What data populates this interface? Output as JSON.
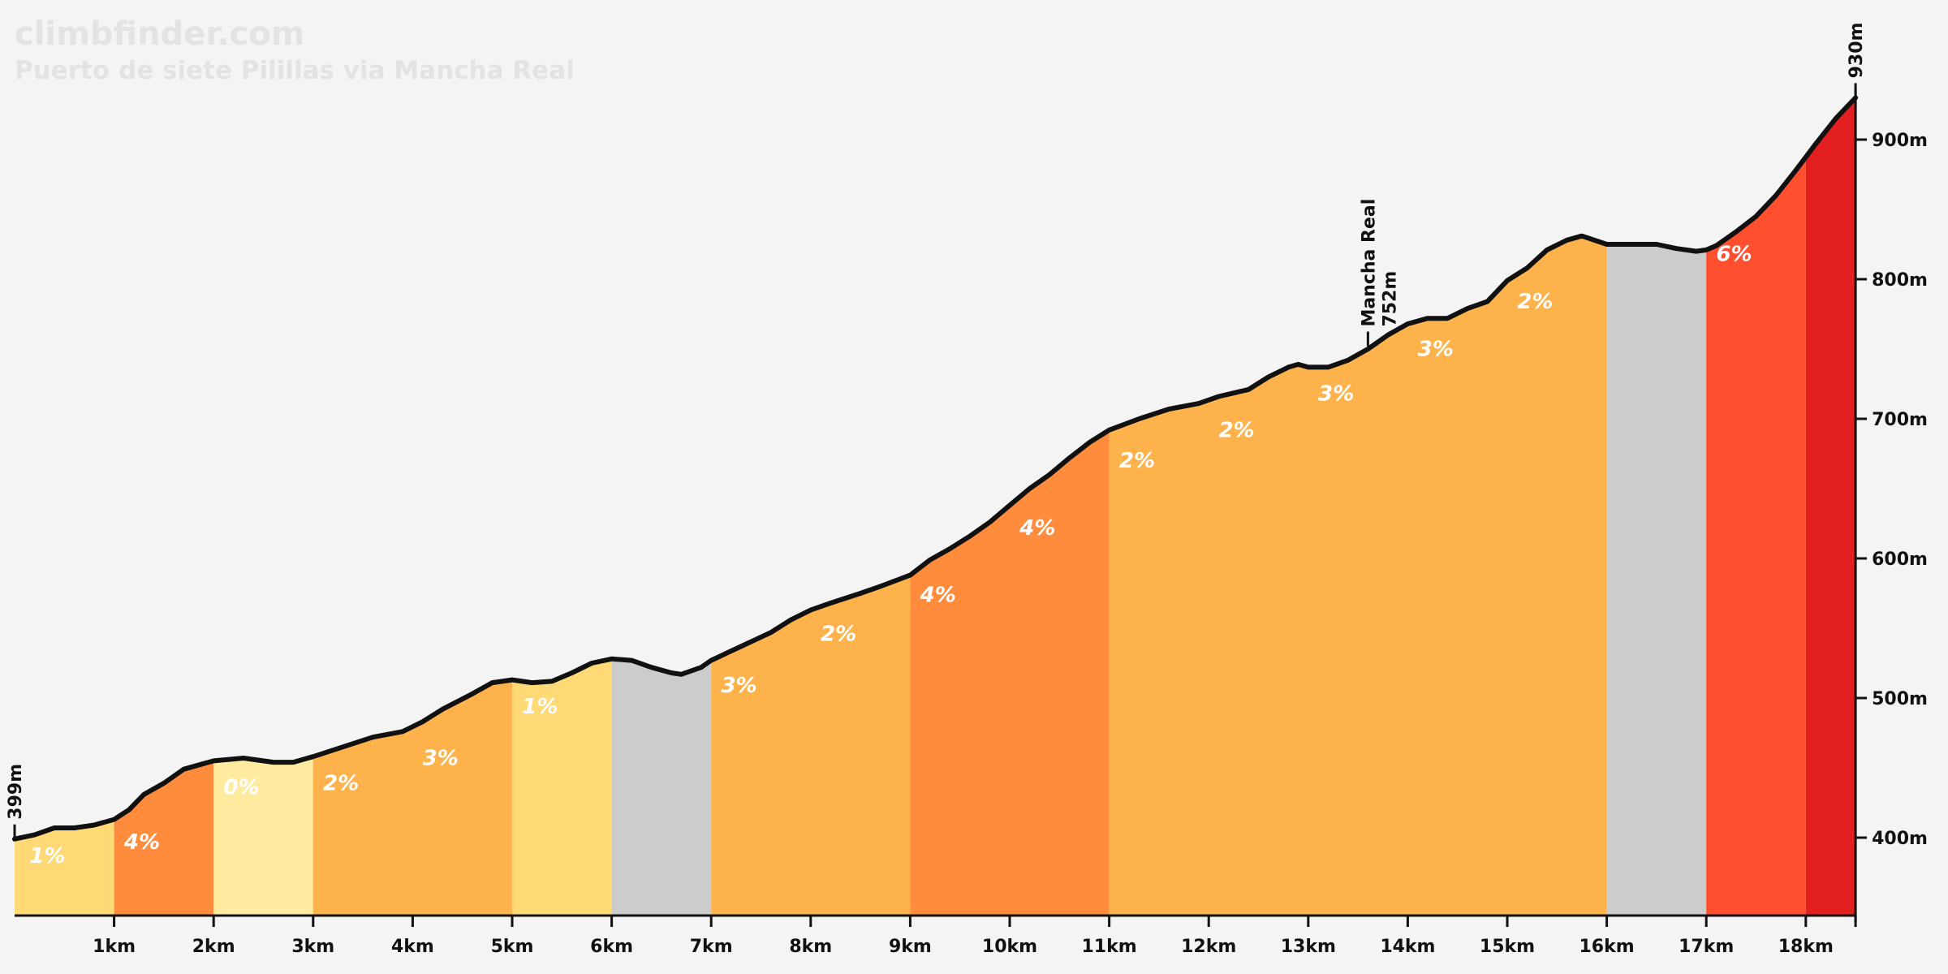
{
  "site": "climbfinder.com",
  "chart_data": {
    "type": "area",
    "title": "Puerto de siete Pilillas via Mancha Real",
    "x_unit": "km",
    "y_unit": "m",
    "xlim": [
      0,
      18.5
    ],
    "ylim": [
      340,
      930
    ],
    "x_ticks": [
      1,
      2,
      3,
      4,
      5,
      6,
      7,
      8,
      9,
      10,
      11,
      12,
      13,
      14,
      15,
      16,
      17,
      18
    ],
    "x_tick_labels": [
      "1km",
      "2km",
      "3km",
      "4km",
      "5km",
      "6km",
      "7km",
      "8km",
      "9km",
      "10km",
      "11km",
      "12km",
      "13km",
      "14km",
      "15km",
      "16km",
      "17km",
      "18km"
    ],
    "y_ticks": [
      400,
      500,
      600,
      700,
      800,
      900
    ],
    "y_tick_labels": [
      "400m",
      "500m",
      "600m",
      "700m",
      "800m",
      "900m"
    ],
    "profile": [
      [
        0.0,
        399
      ],
      [
        0.2,
        402
      ],
      [
        0.4,
        407
      ],
      [
        0.6,
        407
      ],
      [
        0.8,
        409
      ],
      [
        1.0,
        413
      ],
      [
        1.15,
        420
      ],
      [
        1.3,
        431
      ],
      [
        1.5,
        439
      ],
      [
        1.7,
        449
      ],
      [
        1.9,
        453
      ],
      [
        2.0,
        455
      ],
      [
        2.3,
        457
      ],
      [
        2.6,
        454
      ],
      [
        2.8,
        454
      ],
      [
        3.0,
        458
      ],
      [
        3.3,
        465
      ],
      [
        3.6,
        472
      ],
      [
        3.9,
        476
      ],
      [
        4.1,
        483
      ],
      [
        4.3,
        492
      ],
      [
        4.6,
        503
      ],
      [
        4.8,
        511
      ],
      [
        5.0,
        513
      ],
      [
        5.2,
        511
      ],
      [
        5.4,
        512
      ],
      [
        5.6,
        518
      ],
      [
        5.8,
        525
      ],
      [
        6.0,
        528
      ],
      [
        6.2,
        527
      ],
      [
        6.4,
        522
      ],
      [
        6.6,
        518
      ],
      [
        6.7,
        517
      ],
      [
        6.9,
        522
      ],
      [
        7.0,
        527
      ],
      [
        7.3,
        537
      ],
      [
        7.6,
        547
      ],
      [
        7.8,
        556
      ],
      [
        8.0,
        563
      ],
      [
        8.2,
        568
      ],
      [
        8.5,
        575
      ],
      [
        8.7,
        580
      ],
      [
        9.0,
        588
      ],
      [
        9.2,
        599
      ],
      [
        9.4,
        607
      ],
      [
        9.6,
        616
      ],
      [
        9.8,
        626
      ],
      [
        10.0,
        638
      ],
      [
        10.2,
        650
      ],
      [
        10.4,
        660
      ],
      [
        10.6,
        672
      ],
      [
        10.8,
        683
      ],
      [
        11.0,
        692
      ],
      [
        11.3,
        700
      ],
      [
        11.6,
        707
      ],
      [
        11.9,
        711
      ],
      [
        12.1,
        716
      ],
      [
        12.4,
        721
      ],
      [
        12.6,
        730
      ],
      [
        12.8,
        737
      ],
      [
        12.9,
        739
      ],
      [
        13.0,
        737
      ],
      [
        13.2,
        737
      ],
      [
        13.4,
        742
      ],
      [
        13.6,
        750
      ],
      [
        13.8,
        760
      ],
      [
        14.0,
        768
      ],
      [
        14.2,
        772
      ],
      [
        14.4,
        772
      ],
      [
        14.6,
        779
      ],
      [
        14.8,
        784
      ],
      [
        15.0,
        799
      ],
      [
        15.2,
        808
      ],
      [
        15.4,
        821
      ],
      [
        15.6,
        828
      ],
      [
        15.75,
        831
      ],
      [
        16.0,
        825
      ],
      [
        16.2,
        825
      ],
      [
        16.5,
        825
      ],
      [
        16.7,
        822
      ],
      [
        16.9,
        820
      ],
      [
        17.0,
        821
      ],
      [
        17.1,
        824
      ],
      [
        17.3,
        834
      ],
      [
        17.5,
        845
      ],
      [
        17.7,
        860
      ],
      [
        17.9,
        878
      ],
      [
        18.1,
        897
      ],
      [
        18.3,
        915
      ],
      [
        18.5,
        930
      ]
    ],
    "segments": [
      {
        "start": 0,
        "end": 1,
        "gradient": "1%",
        "color": "#ffd976"
      },
      {
        "start": 1,
        "end": 2,
        "gradient": "4%",
        "color": "#ff8c3c"
      },
      {
        "start": 2,
        "end": 3,
        "gradient": "0%",
        "color": "#ffeba0"
      },
      {
        "start": 3,
        "end": 5,
        "gradient": "3%",
        "color": "#fdb24c"
      },
      {
        "start": 5,
        "end": 6,
        "gradient": "1%",
        "color": "#ffd976"
      },
      {
        "start": 6,
        "end": 7,
        "gradient": "",
        "color": "#cccccc"
      },
      {
        "start": 7,
        "end": 9,
        "gradient": "3%",
        "color": "#fdb24c"
      },
      {
        "start": 9,
        "end": 11,
        "gradient": "4%",
        "color": "#ff8c3c"
      },
      {
        "start": 11,
        "end": 16,
        "gradient": "2%",
        "color": "#fdb24c"
      },
      {
        "start": 16,
        "end": 17,
        "gradient": "",
        "color": "#cccccc"
      },
      {
        "start": 17,
        "end": 18,
        "gradient": "6%",
        "color": "#ff4f2e"
      },
      {
        "start": 18,
        "end": 18.5,
        "gradient": "",
        "color": "#e21e1e"
      }
    ],
    "gradient_labels": [
      {
        "x": 0.15,
        "y": 382,
        "text": "1%"
      },
      {
        "x": 1.1,
        "y": 392,
        "text": "4%"
      },
      {
        "x": 2.1,
        "y": 431,
        "text": "0%"
      },
      {
        "x": 3.1,
        "y": 434,
        "text": "2%"
      },
      {
        "x": 4.1,
        "y": 452,
        "text": "3%"
      },
      {
        "x": 5.1,
        "y": 489,
        "text": "1%"
      },
      {
        "x": 7.1,
        "y": 504,
        "text": "3%"
      },
      {
        "x": 8.1,
        "y": 541,
        "text": "2%"
      },
      {
        "x": 9.1,
        "y": 569,
        "text": "4%"
      },
      {
        "x": 10.1,
        "y": 617,
        "text": "4%"
      },
      {
        "x": 11.1,
        "y": 665,
        "text": "2%"
      },
      {
        "x": 12.1,
        "y": 687,
        "text": "2%"
      },
      {
        "x": 13.1,
        "y": 713,
        "text": "3%"
      },
      {
        "x": 14.1,
        "y": 745,
        "text": "3%"
      },
      {
        "x": 15.1,
        "y": 779,
        "text": "2%"
      },
      {
        "x": 17.1,
        "y": 813,
        "text": "6%"
      }
    ],
    "annotations": [
      {
        "x": 0,
        "elev": 399,
        "lines": [
          "399m"
        ]
      },
      {
        "x": 13.6,
        "elev": 752,
        "lines": [
          "Mancha Real",
          "752m"
        ]
      },
      {
        "x": 18.5,
        "elev": 930,
        "lines": [
          "930m"
        ]
      }
    ]
  }
}
